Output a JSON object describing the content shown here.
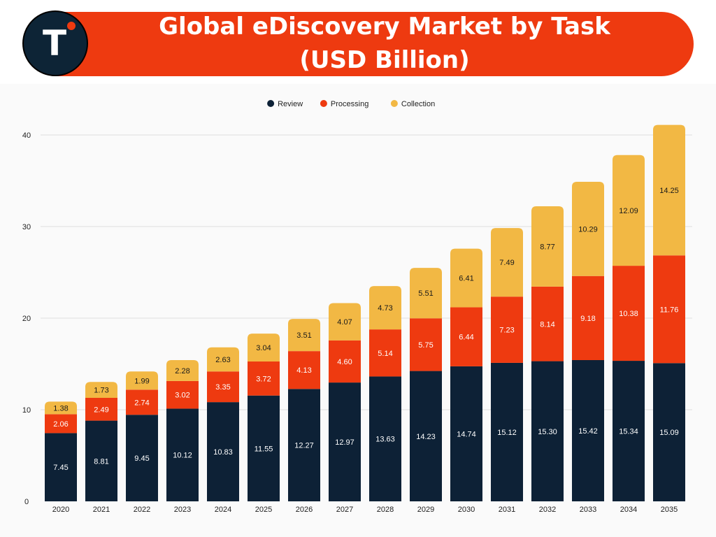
{
  "header": {
    "title_line1": "Global eDiscovery Market by Task",
    "title_line2": "(USD Billion)",
    "logo_letter": "T"
  },
  "colors": {
    "review": "#0d2136",
    "processing": "#ee3a10",
    "collection": "#f2b844",
    "banner": "#ee3a10"
  },
  "chart_data": {
    "type": "bar",
    "stacked": true,
    "title": "Global eDiscovery Market by Task (USD Billion)",
    "categories": [
      "2020",
      "2021",
      "2022",
      "2023",
      "2024",
      "2025",
      "2026",
      "2027",
      "2028",
      "2029",
      "2030",
      "2031",
      "2032",
      "2033",
      "2034",
      "2035"
    ],
    "series": [
      {
        "name": "Review",
        "color": "#0d2136",
        "label_color": "#ffffff",
        "values": [
          7.45,
          8.81,
          9.45,
          10.12,
          10.83,
          11.55,
          12.27,
          12.97,
          13.63,
          14.23,
          14.74,
          15.12,
          15.3,
          15.42,
          15.34,
          15.09
        ]
      },
      {
        "name": "Processing",
        "color": "#ee3a10",
        "label_color": "#ffffff",
        "values": [
          2.06,
          2.49,
          2.74,
          3.02,
          3.35,
          3.72,
          4.13,
          4.6,
          5.14,
          5.75,
          6.44,
          7.23,
          8.14,
          9.18,
          10.38,
          11.76
        ]
      },
      {
        "name": "Collection",
        "color": "#f2b844",
        "label_color": "#1a1a1a",
        "values": [
          1.38,
          1.73,
          1.99,
          2.28,
          2.63,
          3.04,
          3.51,
          4.07,
          4.73,
          5.51,
          6.41,
          7.49,
          8.77,
          10.29,
          12.09,
          14.25
        ]
      }
    ],
    "ylim": [
      0,
      40
    ],
    "yticks": [
      0,
      10,
      20,
      30,
      40
    ],
    "grid": true,
    "legend_position": "top-center"
  }
}
